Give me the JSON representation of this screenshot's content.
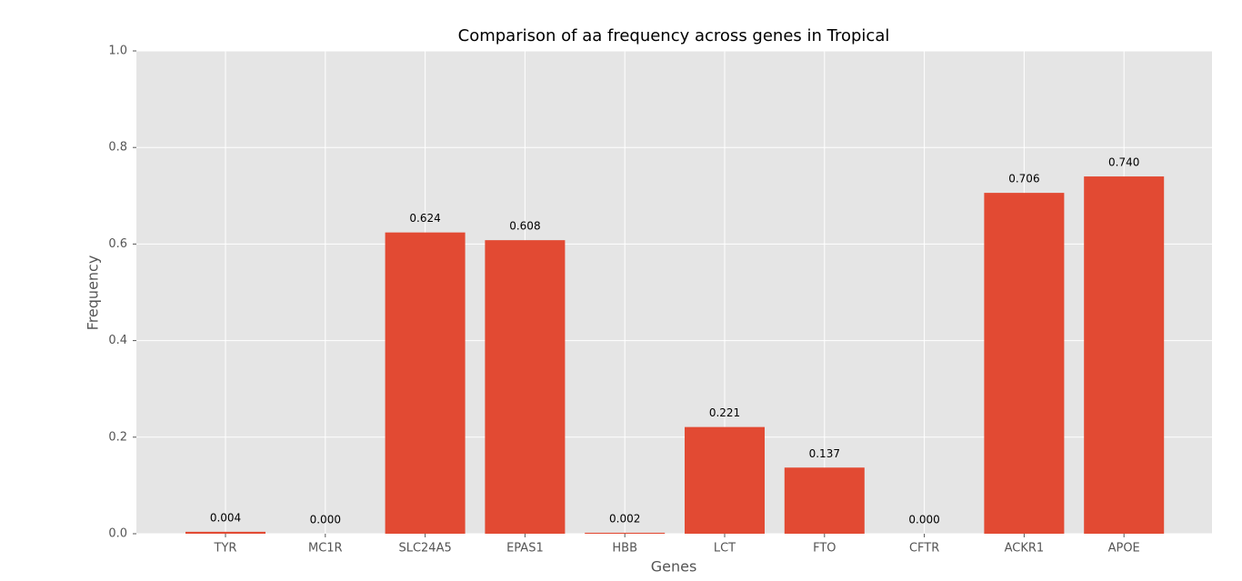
{
  "chart_data": {
    "type": "bar",
    "title": "Comparison of aa frequency across genes in Tropical",
    "x_label": "Genes",
    "y_label": "Frequency",
    "categories": [
      "TYR",
      "MC1R",
      "SLC24A5",
      "EPAS1",
      "HBB",
      "LCT",
      "FTO",
      "CFTR",
      "ACKR1",
      "APOE"
    ],
    "values": [
      0.004,
      0,
      0.624,
      0.608,
      0.002,
      0.221,
      0.137,
      0,
      0.706,
      0.74
    ],
    "value_labels": [
      "0.004",
      "0.000",
      "0.624",
      "0.608",
      "0.002",
      "0.221",
      "0.137",
      "0.000",
      "0.706",
      "0.740"
    ],
    "color": "#e24a33",
    "ylim": [
      0,
      1
    ],
    "yticks": [
      {
        "value": 0,
        "label": "0.0"
      },
      0.2,
      0.4,
      0.6,
      0.8,
      {
        "value": 1,
        "label": "1.0"
      }
    ],
    "grid": true
  }
}
